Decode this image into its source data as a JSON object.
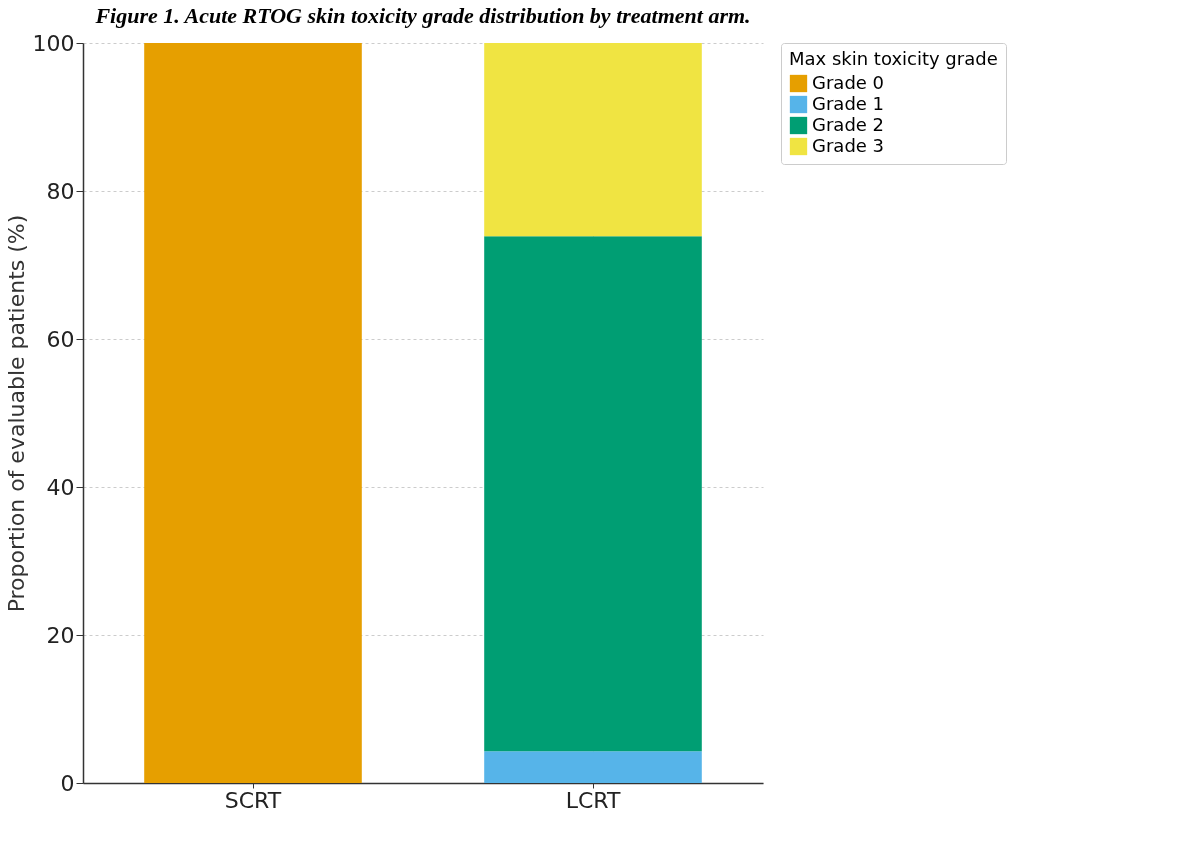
{
  "chart_data": {
    "type": "bar",
    "title": "Figure 1. Acute RTOG skin toxicity grade distribution by treatment arm.",
    "ylabel": "Proportion of evaluable patients (%)",
    "legend_title": "Max skin toxicity grade",
    "categories": [
      "SCRT",
      "LCRT"
    ],
    "stacked": true,
    "series": [
      {
        "name": "Grade 0",
        "color": "#e69f00",
        "values": [
          100,
          0
        ]
      },
      {
        "name": "Grade 1",
        "color": "#56b4e9",
        "values": [
          0,
          4.3
        ]
      },
      {
        "name": "Grade 2",
        "color": "#009e73",
        "values": [
          0,
          69.6
        ]
      },
      {
        "name": "Grade 3",
        "color": "#f0e442",
        "values": [
          0,
          26.1
        ]
      }
    ],
    "ylim": [
      0,
      100
    ],
    "yticks": [
      0,
      20,
      40,
      60,
      80,
      100
    ],
    "grid": true,
    "legend": "top right"
  }
}
